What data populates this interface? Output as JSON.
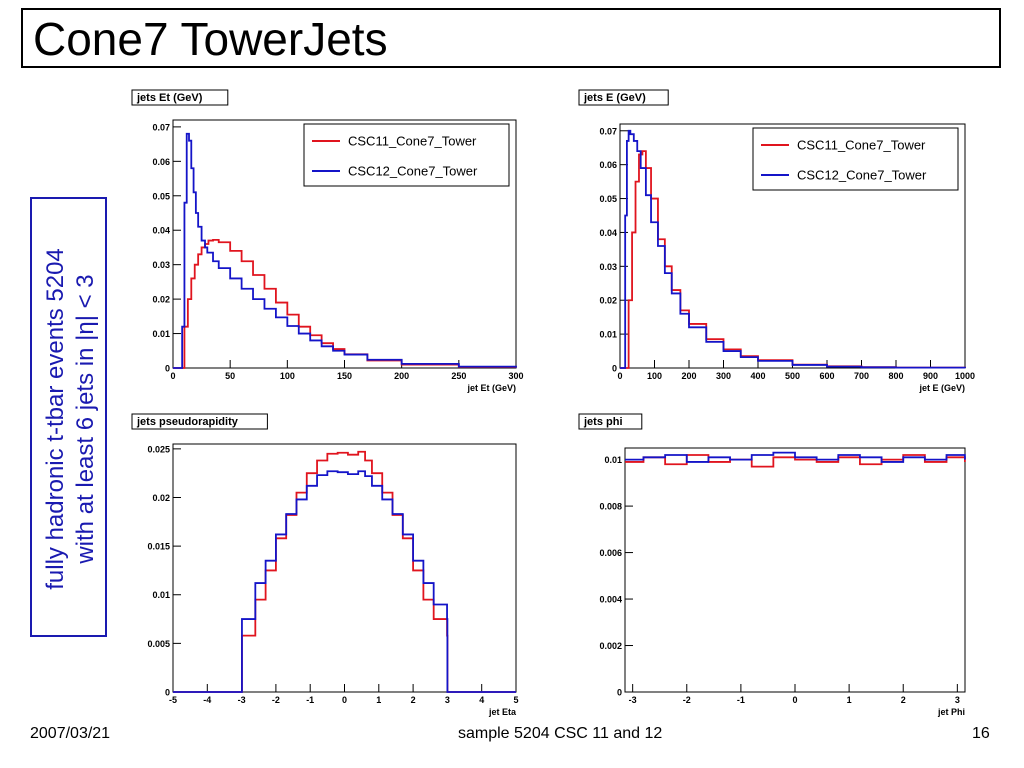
{
  "slide": {
    "title": "Cone7 TowerJets",
    "side_line1": "fully hadronic t-tbar events 5204",
    "side_line2": "with at least 6 jets in |η| < 3",
    "footer_date": "2007/03/21",
    "footer_center": "sample 5204 CSC 11 and 12",
    "footer_page": "16"
  },
  "colors": {
    "csc11": "#e0141e",
    "csc12": "#1414c8",
    "side_text": "#1a1ab0"
  },
  "chart_data": [
    {
      "type": "line",
      "title": "jets Et (GeV)",
      "xlabel": "jet Et (GeV)",
      "ylabel": "",
      "xlim": [
        0,
        300
      ],
      "ylim": [
        0,
        0.072
      ],
      "xticks": [
        0,
        50,
        100,
        150,
        200,
        250,
        300
      ],
      "yticks": [
        0,
        0.01,
        0.02,
        0.03,
        0.04,
        0.05,
        0.06,
        0.07
      ],
      "ytick_labels": [
        "0",
        "0.01",
        "0.02",
        "0.03",
        "0.04",
        "0.05",
        "0.06",
        "0.07"
      ],
      "legend": [
        "CSC11_Cone7_Tower",
        "CSC12_Cone7_Tower"
      ],
      "legend_position": "top-right",
      "series": [
        {
          "name": "CSC11_Cone7_Tower",
          "color": "#e0141e",
          "x": [
            0,
            8,
            10,
            13,
            16,
            19,
            22,
            25,
            28,
            31,
            35,
            40,
            50,
            60,
            70,
            80,
            90,
            100,
            110,
            120,
            130,
            140,
            150,
            170,
            200,
            250,
            300
          ],
          "y": [
            0,
            0,
            0.012,
            0.02,
            0.026,
            0.03,
            0.033,
            0.035,
            0.036,
            0.037,
            0.0372,
            0.0365,
            0.034,
            0.031,
            0.027,
            0.023,
            0.019,
            0.0155,
            0.012,
            0.0095,
            0.0072,
            0.0055,
            0.004,
            0.0022,
            0.001,
            0.0003,
            0.0001
          ]
        },
        {
          "name": "CSC12_Cone7_Tower",
          "color": "#1414c8",
          "x": [
            0,
            6,
            8,
            10,
            12,
            14,
            16,
            18,
            20,
            22,
            25,
            28,
            30,
            35,
            40,
            50,
            60,
            70,
            80,
            90,
            100,
            110,
            120,
            130,
            140,
            150,
            170,
            200,
            250,
            300
          ],
          "y": [
            0,
            0,
            0.012,
            0.048,
            0.068,
            0.066,
            0.058,
            0.051,
            0.045,
            0.041,
            0.037,
            0.035,
            0.0335,
            0.031,
            0.029,
            0.026,
            0.023,
            0.02,
            0.0172,
            0.0147,
            0.0122,
            0.01,
            0.008,
            0.0063,
            0.005,
            0.0039,
            0.0024,
            0.0012,
            0.0004,
            0.0001
          ]
        }
      ]
    },
    {
      "type": "line",
      "title": "jets E (GeV)",
      "xlabel": "jet E (GeV)",
      "ylabel": "",
      "xlim": [
        0,
        1000
      ],
      "ylim": [
        0,
        0.072
      ],
      "xticks": [
        0,
        100,
        200,
        300,
        400,
        500,
        600,
        700,
        800,
        900,
        1000
      ],
      "yticks": [
        0,
        0.01,
        0.02,
        0.03,
        0.04,
        0.05,
        0.06,
        0.07
      ],
      "ytick_labels": [
        "0",
        "0.01",
        "0.02",
        "0.03",
        "0.04",
        "0.05",
        "0.06",
        "0.07"
      ],
      "legend": [
        "CSC11_Cone7_Tower",
        "CSC12_Cone7_Tower"
      ],
      "legend_position": "top-right",
      "series": [
        {
          "name": "CSC11_Cone7_Tower",
          "color": "#e0141e",
          "x": [
            0,
            15,
            25,
            35,
            45,
            55,
            65,
            75,
            90,
            110,
            130,
            150,
            175,
            200,
            250,
            300,
            350,
            400,
            500,
            600,
            700,
            800,
            1000
          ],
          "y": [
            0,
            0,
            0.02,
            0.04,
            0.055,
            0.063,
            0.064,
            0.059,
            0.05,
            0.038,
            0.03,
            0.023,
            0.017,
            0.013,
            0.0085,
            0.0055,
            0.0035,
            0.0023,
            0.001,
            0.0005,
            0.00025,
            0.0001,
            0
          ]
        },
        {
          "name": "CSC12_Cone7_Tower",
          "color": "#1414c8",
          "x": [
            0,
            10,
            15,
            20,
            25,
            30,
            40,
            50,
            60,
            75,
            90,
            110,
            130,
            150,
            175,
            200,
            250,
            300,
            350,
            400,
            500,
            600,
            700,
            800,
            1000
          ],
          "y": [
            0,
            0,
            0.045,
            0.067,
            0.07,
            0.069,
            0.067,
            0.064,
            0.059,
            0.051,
            0.043,
            0.036,
            0.028,
            0.022,
            0.016,
            0.012,
            0.0077,
            0.005,
            0.0032,
            0.0021,
            0.0009,
            0.0004,
            0.0002,
            0.0001,
            0
          ]
        }
      ]
    },
    {
      "type": "line",
      "title": "jets pseudorapidity",
      "xlabel": "jet Eta",
      "ylabel": "",
      "xlim": [
        -5,
        5
      ],
      "ylim": [
        0,
        0.0255
      ],
      "xticks": [
        -5,
        -4,
        -3,
        -2,
        -1,
        0,
        1,
        2,
        3,
        4,
        5
      ],
      "yticks": [
        0,
        0.005,
        0.01,
        0.015,
        0.02,
        0.025
      ],
      "ytick_labels": [
        "0",
        "0.005",
        "0.01",
        "0.015",
        "0.02",
        "0.025"
      ],
      "series": [
        {
          "name": "",
          "color": "#e0141e",
          "x": [
            -5,
            -3.0,
            -2.99,
            -2.6,
            -2.3,
            -2.0,
            -1.7,
            -1.4,
            -1.1,
            -0.8,
            -0.5,
            -0.2,
            0.1,
            0.4,
            0.6,
            0.8,
            1.1,
            1.4,
            1.7,
            2.0,
            2.3,
            2.6,
            2.99,
            3.0,
            5
          ],
          "y": [
            0,
            0,
            0.0058,
            0.0095,
            0.0125,
            0.0158,
            0.0182,
            0.0205,
            0.0225,
            0.0238,
            0.0245,
            0.0246,
            0.0244,
            0.0247,
            0.0238,
            0.0225,
            0.0205,
            0.0182,
            0.0158,
            0.0125,
            0.0095,
            0.0075,
            0.0058,
            0,
            0
          ]
        },
        {
          "name": "",
          "color": "#1414c8",
          "x": [
            -5,
            -3.0,
            -2.99,
            -2.6,
            -2.3,
            -2.0,
            -1.7,
            -1.4,
            -1.1,
            -0.8,
            -0.5,
            -0.2,
            0.1,
            0.4,
            0.6,
            0.8,
            1.1,
            1.4,
            1.7,
            2.0,
            2.3,
            2.6,
            2.99,
            3.0,
            5
          ],
          "y": [
            0,
            0,
            0.0075,
            0.0112,
            0.0135,
            0.0162,
            0.0183,
            0.0198,
            0.0212,
            0.0223,
            0.0227,
            0.0226,
            0.0224,
            0.0227,
            0.0222,
            0.0212,
            0.0198,
            0.0183,
            0.0162,
            0.0135,
            0.0112,
            0.009,
            0.0075,
            0,
            0
          ]
        }
      ]
    },
    {
      "type": "line",
      "title": "jets phi",
      "xlabel": "jet Phi",
      "ylabel": "",
      "xlim": [
        -3.1416,
        3.1416
      ],
      "ylim": [
        0,
        0.0105
      ],
      "xticks": [
        -3,
        -2,
        -1,
        0,
        1,
        2,
        3
      ],
      "yticks": [
        0,
        0.002,
        0.004,
        0.006,
        0.008,
        0.01
      ],
      "ytick_labels": [
        "0",
        "0.002",
        "0.004",
        "0.006",
        "0.008",
        "0.01"
      ],
      "series": [
        {
          "name": "",
          "color": "#e0141e",
          "x": [
            -3.14,
            -2.8,
            -2.4,
            -2.0,
            -1.6,
            -1.2,
            -0.8,
            -0.4,
            0,
            0.4,
            0.8,
            1.2,
            1.6,
            2.0,
            2.4,
            2.8,
            3.14
          ],
          "y": [
            0.0099,
            0.0101,
            0.0098,
            0.0102,
            0.0099,
            0.01,
            0.0097,
            0.0101,
            0.01,
            0.0099,
            0.0101,
            0.0098,
            0.01,
            0.0102,
            0.0099,
            0.0101,
            0.0099
          ]
        },
        {
          "name": "",
          "color": "#1414c8",
          "x": [
            -3.14,
            -2.8,
            -2.4,
            -2.0,
            -1.6,
            -1.2,
            -0.8,
            -0.4,
            0,
            0.4,
            0.8,
            1.2,
            1.6,
            2.0,
            2.4,
            2.8,
            3.14
          ],
          "y": [
            0.01,
            0.0101,
            0.0102,
            0.0099,
            0.0101,
            0.01,
            0.0102,
            0.0103,
            0.0101,
            0.01,
            0.0102,
            0.0101,
            0.0099,
            0.0101,
            0.01,
            0.0102,
            0.01
          ]
        }
      ]
    }
  ]
}
